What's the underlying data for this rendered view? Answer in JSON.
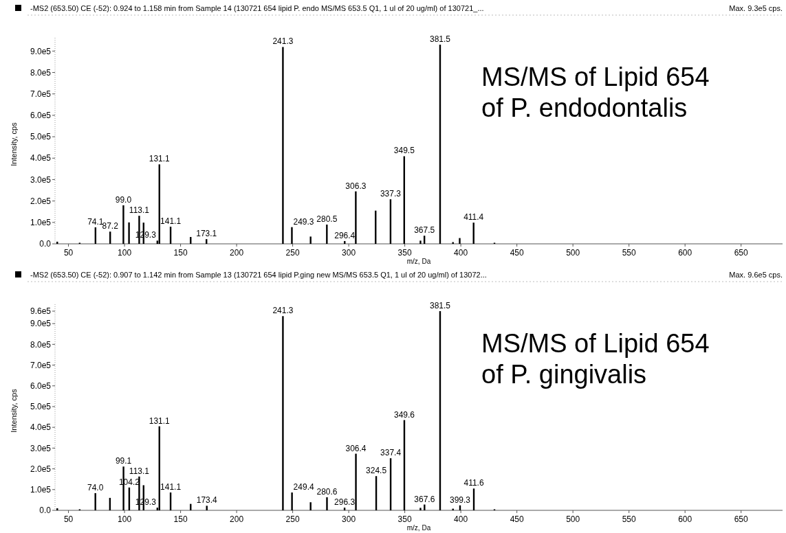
{
  "chart_data": [
    {
      "type": "bar",
      "title": "-MS2 (653.50) CE (-52): 0.924 to 1.158 min from Sample 14 (130721 654 lipid P. endo MS/MS 653.5  Q1, 1 ul of 20 ug/ml) of 130721_...",
      "subtitle": "Max. 9.3e5 cps.",
      "xlabel": "m/z, Da",
      "ylabel": "Intensity, cps",
      "color": "#000000",
      "annotations": [
        "MS/MS of Lipid 654",
        "of P. endodontalis",
        {
          "text": "74.1",
          "x": 74.1,
          "y": 77000
        },
        {
          "text": "87.2",
          "x": 87.2,
          "y": 57000
        },
        {
          "text": "99.0",
          "x": 99.0,
          "y": 180000
        },
        {
          "text": "113.1",
          "x": 113.1,
          "y": 131000
        },
        {
          "text": "129.3",
          "x": 129.3,
          "y": 15000
        },
        {
          "text": "131.1",
          "x": 131.1,
          "y": 371000
        },
        {
          "text": "141.1",
          "x": 141.1,
          "y": 80000
        },
        {
          "text": "173.1",
          "x": 173.1,
          "y": 22000
        },
        {
          "text": "241.3",
          "x": 241.3,
          "y": 919000
        },
        {
          "text": "249.3",
          "x": 249.3,
          "y": 78000
        },
        {
          "text": "280.5",
          "x": 280.5,
          "y": 90000
        },
        {
          "text": "296.4",
          "x": 296.4,
          "y": 13000
        },
        {
          "text": "306.3",
          "x": 306.3,
          "y": 245000
        },
        {
          "text": "337.3",
          "x": 337.3,
          "y": 208000
        },
        {
          "text": "349.5",
          "x": 349.5,
          "y": 409000
        },
        {
          "text": "367.5",
          "x": 367.5,
          "y": 38000
        },
        {
          "text": "381.5",
          "x": 381.5,
          "y": 930000
        },
        {
          "text": "411.4",
          "x": 411.4,
          "y": 99000
        }
      ],
      "x": [
        40,
        60,
        74.1,
        87.2,
        99.0,
        104,
        113.1,
        117,
        129.3,
        131.1,
        141.1,
        159,
        173.1,
        241.3,
        249.3,
        266,
        280.5,
        296.4,
        306.3,
        324,
        337.3,
        349.5,
        364,
        367.5,
        381.5,
        393,
        399,
        411.4,
        430
      ],
      "values": [
        10000,
        5000,
        77000,
        57000,
        180000,
        100000,
        131000,
        99000,
        15000,
        371000,
        80000,
        32000,
        22000,
        919000,
        78000,
        34000,
        90000,
        13000,
        245000,
        155000,
        208000,
        409000,
        15000,
        38000,
        930000,
        8000,
        27000,
        99000,
        5000
      ],
      "xlim": [
        38,
        687
      ],
      "xticks": [
        50,
        100,
        150,
        200,
        250,
        300,
        350,
        400,
        450,
        500,
        550,
        600,
        650
      ],
      "ylim": [
        0,
        930000
      ],
      "yticks": [
        {
          "value": 0,
          "label": "0.0"
        },
        {
          "value": 100000,
          "label": "1.0e5"
        },
        {
          "value": 200000,
          "label": "2.0e5"
        },
        {
          "value": 300000,
          "label": "3.0e5"
        },
        {
          "value": 400000,
          "label": "4.0e5"
        },
        {
          "value": 500000,
          "label": "5.0e5"
        },
        {
          "value": 600000,
          "label": "6.0e5"
        },
        {
          "value": 700000,
          "label": "7.0e5"
        },
        {
          "value": 800000,
          "label": "8.0e5"
        },
        {
          "value": 900000,
          "label": "9.0e5"
        }
      ]
    },
    {
      "type": "bar",
      "title": "-MS2 (653.50) CE (-52): 0.907 to 1.142 min from Sample 13 (130721 654 lipid P.ging new MS/MS 653.5  Q1, 1 ul of 20 ug/ml) of 13072...",
      "subtitle": "Max. 9.6e5 cps.",
      "xlabel": "m/z, Da",
      "ylabel": "Intensity, cps",
      "color": "#000000",
      "annotations": [
        "MS/MS of Lipid 654",
        "of P. gingivalis",
        {
          "text": "74.0",
          "x": 74.0,
          "y": 83000
        },
        {
          "text": "99.1",
          "x": 99.1,
          "y": 211000
        },
        {
          "text": "104.2",
          "x": 104.2,
          "y": 110000
        },
        {
          "text": "113.1",
          "x": 113.1,
          "y": 163000
        },
        {
          "text": "129.3",
          "x": 129.3,
          "y": 13000
        },
        {
          "text": "131.1",
          "x": 131.1,
          "y": 405000
        },
        {
          "text": "141.1",
          "x": 141.1,
          "y": 86000
        },
        {
          "text": "173.4",
          "x": 173.4,
          "y": 22000
        },
        {
          "text": "241.3",
          "x": 241.3,
          "y": 936000
        },
        {
          "text": "249.4",
          "x": 249.4,
          "y": 86000
        },
        {
          "text": "280.6",
          "x": 280.6,
          "y": 63000
        },
        {
          "text": "296.3",
          "x": 296.3,
          "y": 13000
        },
        {
          "text": "306.4",
          "x": 306.4,
          "y": 273000
        },
        {
          "text": "324.5",
          "x": 324.5,
          "y": 165000
        },
        {
          "text": "337.4",
          "x": 337.4,
          "y": 251000
        },
        {
          "text": "349.6",
          "x": 349.6,
          "y": 435000
        },
        {
          "text": "367.6",
          "x": 367.6,
          "y": 28000
        },
        {
          "text": "381.5",
          "x": 381.5,
          "y": 960000
        },
        {
          "text": "399.3",
          "x": 399.3,
          "y": 24000
        },
        {
          "text": "411.6",
          "x": 411.6,
          "y": 105000
        }
      ],
      "x": [
        40,
        60,
        74.0,
        87,
        99.1,
        104.2,
        113.1,
        117,
        129.3,
        131.1,
        141.1,
        159,
        173.4,
        241.3,
        249.4,
        266,
        280.6,
        296.3,
        306.4,
        324.5,
        337.4,
        349.6,
        364,
        367.6,
        381.5,
        393,
        399.3,
        411.6,
        430
      ],
      "values": [
        10000,
        5000,
        83000,
        60000,
        211000,
        110000,
        163000,
        121000,
        13000,
        405000,
        86000,
        31000,
        22000,
        936000,
        86000,
        39000,
        63000,
        13000,
        273000,
        165000,
        251000,
        435000,
        12000,
        28000,
        960000,
        8000,
        24000,
        105000,
        5000
      ],
      "xlim": [
        38,
        687
      ],
      "xticks": [
        50,
        100,
        150,
        200,
        250,
        300,
        350,
        400,
        450,
        500,
        550,
        600,
        650
      ],
      "ylim": [
        0,
        960000
      ],
      "yticks": [
        {
          "value": 0,
          "label": "0.0"
        },
        {
          "value": 100000,
          "label": "1.0e5"
        },
        {
          "value": 200000,
          "label": "2.0e5"
        },
        {
          "value": 300000,
          "label": "3.0e5"
        },
        {
          "value": 400000,
          "label": "4.0e5"
        },
        {
          "value": 500000,
          "label": "5.0e5"
        },
        {
          "value": 600000,
          "label": "6.0e5"
        },
        {
          "value": 700000,
          "label": "7.0e5"
        },
        {
          "value": 800000,
          "label": "8.0e5"
        },
        {
          "value": 900000,
          "label": "9.0e5"
        },
        {
          "value": 960000,
          "label": "9.6e5"
        }
      ]
    }
  ]
}
